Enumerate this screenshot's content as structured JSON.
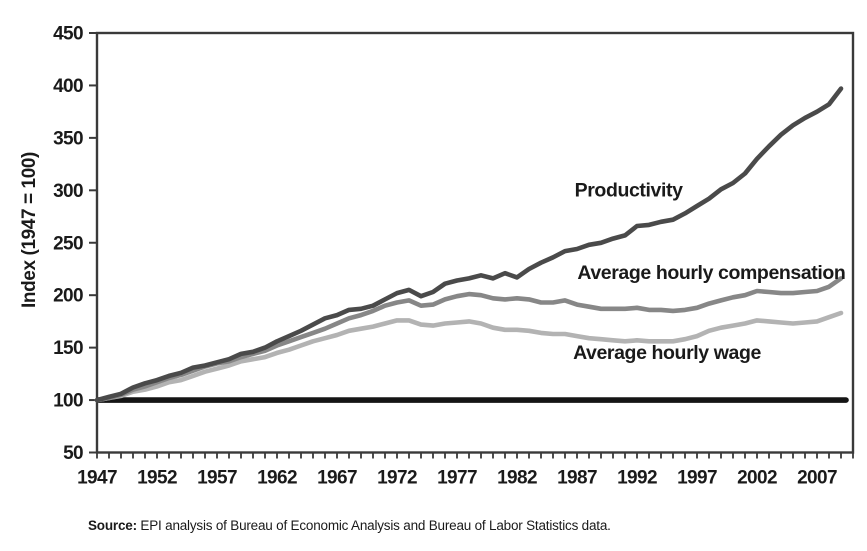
{
  "source": {
    "prefix": "Source:",
    "text": " EPI analysis of Bureau of Economic Analysis and Bureau of Labor Statistics data."
  },
  "chart_data": {
    "type": "line",
    "title": "",
    "xlabel": "",
    "ylabel": "Index (1947 = 100)",
    "ylim": [
      50,
      450
    ],
    "x_range": [
      1947,
      2010
    ],
    "y_ticks": [
      50,
      100,
      150,
      200,
      250,
      300,
      350,
      400,
      450
    ],
    "x_ticks": [
      1947,
      1952,
      1957,
      1962,
      1967,
      1972,
      1977,
      1982,
      1987,
      1992,
      1997,
      2002,
      2007
    ],
    "grid": false,
    "legend_position": "inline-labels",
    "baseline": 100,
    "colors": {
      "axis": "#3a3a3a",
      "baseline": "#151515",
      "text": "#1a1a1a",
      "productivity": "#4a4a4a",
      "compensation": "#878787",
      "wage": "#b3b3b3"
    },
    "x": [
      1947,
      1948,
      1949,
      1950,
      1951,
      1952,
      1953,
      1954,
      1955,
      1956,
      1957,
      1958,
      1959,
      1960,
      1961,
      1962,
      1963,
      1964,
      1965,
      1966,
      1967,
      1968,
      1969,
      1970,
      1971,
      1972,
      1973,
      1974,
      1975,
      1976,
      1977,
      1978,
      1979,
      1980,
      1981,
      1982,
      1983,
      1984,
      1985,
      1986,
      1987,
      1988,
      1989,
      1990,
      1991,
      1992,
      1993,
      1994,
      1995,
      1996,
      1997,
      1998,
      1999,
      2000,
      2001,
      2002,
      2003,
      2004,
      2005,
      2006,
      2007,
      2008,
      2009
    ],
    "series": [
      {
        "id": "productivity",
        "name": "Productivity",
        "color": "#4a4a4a",
        "width": 4.6,
        "values": [
          100,
          103,
          106,
          112,
          116,
          119,
          123,
          126,
          131,
          133,
          136,
          139,
          144,
          146,
          150,
          156,
          161,
          166,
          172,
          178,
          181,
          186,
          187,
          190,
          196,
          202,
          205,
          199,
          203,
          211,
          214,
          216,
          219,
          216,
          221,
          217,
          225,
          231,
          236,
          242,
          244,
          248,
          250,
          254,
          257,
          266,
          267,
          270,
          272,
          278,
          285,
          292,
          301,
          307,
          316,
          330,
          342,
          353,
          362,
          369,
          375,
          382,
          397
        ]
      },
      {
        "id": "compensation",
        "name": "Average hourly compensation",
        "color": "#878787",
        "width": 4.6,
        "values": [
          100,
          102,
          105,
          110,
          113,
          117,
          121,
          124,
          128,
          132,
          135,
          137,
          141,
          144,
          147,
          152,
          156,
          160,
          164,
          168,
          173,
          178,
          181,
          185,
          190,
          193,
          195,
          190,
          191,
          196,
          199,
          201,
          200,
          197,
          196,
          197,
          196,
          193,
          193,
          195,
          191,
          189,
          187,
          187,
          187,
          188,
          186,
          186,
          185,
          186,
          188,
          192,
          195,
          198,
          200,
          204,
          203,
          202,
          202,
          203,
          204,
          208,
          216
        ]
      },
      {
        "id": "wage",
        "name": "Average hourly wage",
        "color": "#b3b3b3",
        "width": 4.6,
        "values": [
          100,
          102,
          104,
          108,
          110,
          113,
          117,
          119,
          123,
          127,
          130,
          133,
          137,
          139,
          141,
          145,
          148,
          152,
          156,
          159,
          162,
          166,
          168,
          170,
          173,
          176,
          176,
          172,
          171,
          173,
          174,
          175,
          173,
          169,
          167,
          167,
          166,
          164,
          163,
          163,
          161,
          159,
          158,
          157,
          156,
          157,
          156,
          156,
          156,
          158,
          161,
          166,
          169,
          171,
          173,
          176,
          175,
          174,
          173,
          174,
          175,
          179,
          183
        ]
      }
    ],
    "annotations": [
      {
        "text": "Productivity",
        "at_year": 1991.3,
        "at_index": 301
      },
      {
        "text": "Average hourly compensation",
        "at_year": 1998.2,
        "at_index": 222
      },
      {
        "text": "Average hourly wage",
        "at_year": 1994.5,
        "at_index": 146
      }
    ]
  }
}
